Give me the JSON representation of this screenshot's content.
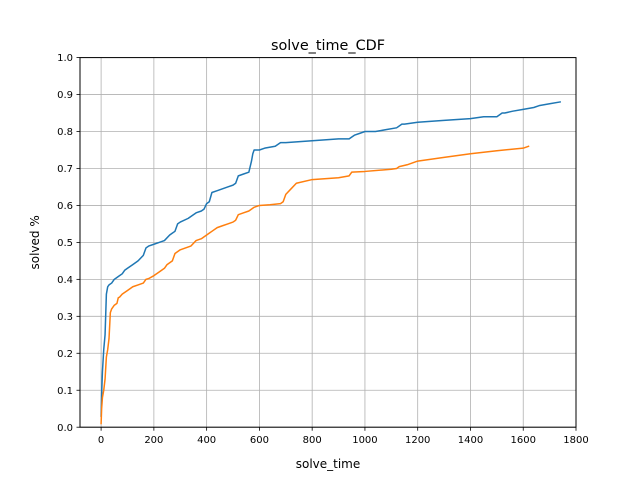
{
  "chart_data": {
    "type": "line",
    "title": "solve_time_CDF",
    "xlabel": "solve_time",
    "ylabel": "solved %",
    "xlim": [
      -80,
      1800
    ],
    "ylim": [
      0.0,
      1.0
    ],
    "grid": true,
    "legend": "none",
    "x_ticks": [
      0,
      200,
      400,
      600,
      800,
      1000,
      1200,
      1400,
      1600,
      1800
    ],
    "y_ticks": [
      0.0,
      0.1,
      0.2,
      0.3,
      0.4,
      0.5,
      0.6,
      0.7,
      0.8,
      0.9,
      1.0
    ],
    "x_tick_labels": [
      "0",
      "200",
      "400",
      "600",
      "800",
      "1000",
      "1200",
      "1400",
      "1600",
      "1800"
    ],
    "y_tick_labels": [
      "0.0",
      "0.1",
      "0.2",
      "0.3",
      "0.4",
      "0.5",
      "0.6",
      "0.7",
      "0.8",
      "0.9",
      "1.0"
    ],
    "series": [
      {
        "color": "#1f77b4",
        "x": [
          0,
          2,
          5,
          10,
          15,
          20,
          25,
          30,
          40,
          50,
          60,
          70,
          80,
          90,
          100,
          120,
          140,
          160,
          170,
          180,
          200,
          220,
          240,
          260,
          270,
          280,
          290,
          300,
          330,
          360,
          380,
          390,
          400,
          410,
          420,
          440,
          460,
          480,
          500,
          510,
          520,
          540,
          560,
          570,
          575,
          580,
          600,
          620,
          660,
          680,
          700,
          800,
          900,
          940,
          960,
          980,
          1000,
          1040,
          1080,
          1120,
          1140,
          1150,
          1200,
          1300,
          1400,
          1450,
          1500,
          1520,
          1530,
          1560,
          1600,
          1640,
          1660,
          1700,
          1740
        ],
        "y": [
          0.03,
          0.09,
          0.15,
          0.21,
          0.25,
          0.36,
          0.38,
          0.385,
          0.39,
          0.4,
          0.405,
          0.41,
          0.415,
          0.425,
          0.43,
          0.44,
          0.45,
          0.465,
          0.485,
          0.49,
          0.495,
          0.5,
          0.505,
          0.52,
          0.525,
          0.53,
          0.55,
          0.555,
          0.565,
          0.58,
          0.585,
          0.59,
          0.605,
          0.61,
          0.635,
          0.64,
          0.645,
          0.65,
          0.655,
          0.66,
          0.68,
          0.685,
          0.69,
          0.72,
          0.74,
          0.75,
          0.75,
          0.755,
          0.76,
          0.77,
          0.77,
          0.775,
          0.78,
          0.78,
          0.79,
          0.795,
          0.8,
          0.8,
          0.805,
          0.81,
          0.82,
          0.82,
          0.825,
          0.83,
          0.835,
          0.84,
          0.84,
          0.85,
          0.85,
          0.855,
          0.86,
          0.865,
          0.87,
          0.875,
          0.88
        ]
      },
      {
        "color": "#ff7f0e",
        "x": [
          0,
          2,
          5,
          10,
          15,
          20,
          25,
          30,
          35,
          40,
          50,
          60,
          65,
          70,
          80,
          100,
          120,
          140,
          160,
          170,
          180,
          200,
          220,
          240,
          250,
          260,
          270,
          280,
          300,
          320,
          340,
          360,
          380,
          400,
          410,
          420,
          440,
          460,
          480,
          500,
          510,
          520,
          540,
          560,
          580,
          600,
          640,
          680,
          690,
          700,
          720,
          740,
          800,
          900,
          940,
          950,
          1000,
          1100,
          1120,
          1130,
          1160,
          1200,
          1300,
          1400,
          1500,
          1600,
          1620
        ],
        "y": [
          0.01,
          0.05,
          0.08,
          0.1,
          0.13,
          0.19,
          0.21,
          0.24,
          0.31,
          0.32,
          0.33,
          0.335,
          0.35,
          0.352,
          0.36,
          0.37,
          0.38,
          0.385,
          0.39,
          0.4,
          0.402,
          0.41,
          0.42,
          0.43,
          0.44,
          0.445,
          0.45,
          0.47,
          0.48,
          0.485,
          0.49,
          0.505,
          0.51,
          0.52,
          0.525,
          0.53,
          0.54,
          0.545,
          0.55,
          0.555,
          0.56,
          0.575,
          0.58,
          0.585,
          0.595,
          0.6,
          0.602,
          0.605,
          0.61,
          0.63,
          0.645,
          0.66,
          0.67,
          0.675,
          0.68,
          0.69,
          0.692,
          0.698,
          0.7,
          0.705,
          0.71,
          0.72,
          0.73,
          0.74,
          0.748,
          0.755,
          0.76
        ]
      }
    ]
  }
}
